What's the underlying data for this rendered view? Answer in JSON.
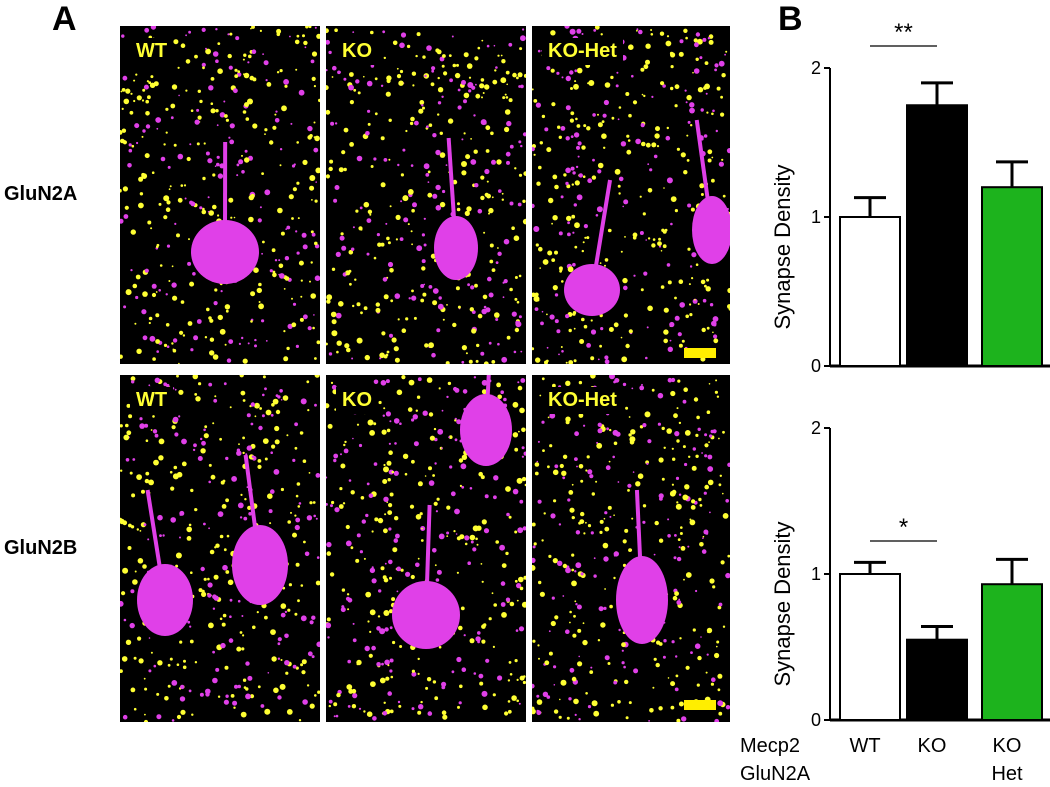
{
  "panels": {
    "a": "A",
    "b": "B"
  },
  "rows": [
    {
      "label": "GluN2A",
      "tiles": [
        "WT",
        "KO",
        "KO-Het"
      ]
    },
    {
      "label": "GluN2B",
      "tiles": [
        "WT",
        "KO",
        "KO-Het"
      ]
    }
  ],
  "colors": {
    "wt": "#ffffff",
    "ko": "#000000",
    "het": "#1db31d",
    "synapse": "#ffff33",
    "neuron": "#e040e8"
  },
  "chart_data": [
    {
      "type": "bar",
      "categories": [
        "WT",
        "KO",
        "KO Het"
      ],
      "values": [
        1.0,
        1.75,
        1.2
      ],
      "errors": [
        0.13,
        0.15,
        0.17
      ],
      "ylabel": "Synapse Density",
      "ylim": [
        0,
        2
      ],
      "yticks": [
        "0",
        "1",
        "2"
      ],
      "significance": [
        {
          "from": 0,
          "to": 1,
          "label": "**"
        }
      ]
    },
    {
      "type": "bar",
      "categories": [
        "WT",
        "KO",
        "KO Het"
      ],
      "values": [
        1.0,
        0.55,
        0.93
      ],
      "errors": [
        0.08,
        0.09,
        0.17
      ],
      "ylabel": "Synapse Density",
      "ylim": [
        0,
        2
      ],
      "yticks": [
        "0",
        "1",
        "2"
      ],
      "significance": [
        {
          "from": 0,
          "to": 1,
          "label": "*"
        }
      ]
    }
  ],
  "xaxis": {
    "row1_label": "Mecp2",
    "row2_label": "GluN2A",
    "cats": [
      [
        "WT",
        ""
      ],
      [
        "KO",
        ""
      ],
      [
        "KO",
        "Het"
      ]
    ]
  }
}
